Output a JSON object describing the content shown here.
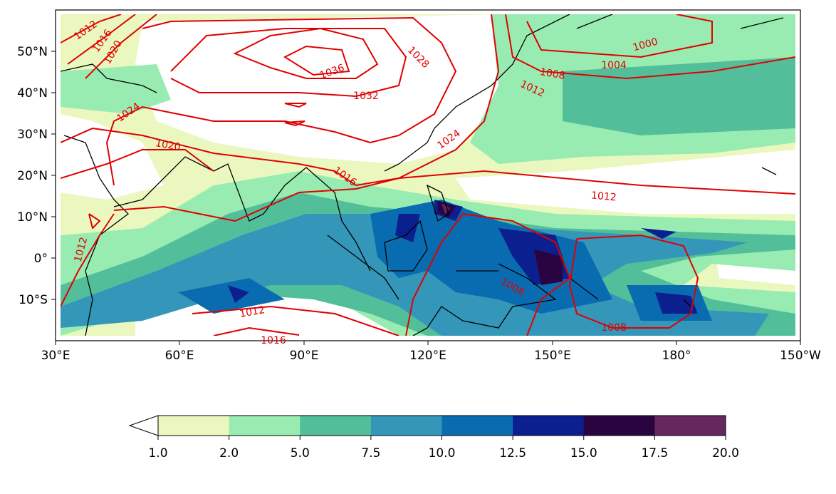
{
  "map": {
    "lon_labels": [
      "30°E",
      "60°E",
      "90°E",
      "120°E",
      "150°E",
      "180°",
      "150°W"
    ],
    "lat_labels": [
      "50°N",
      "40°N",
      "30°N",
      "20°N",
      "10°N",
      "0°",
      "10°S"
    ],
    "contour_labels": [
      "1012",
      "1016",
      "1020",
      "1036",
      "1028",
      "1032",
      "1024",
      "1020",
      "1016",
      "1024",
      "1000",
      "1004",
      "1008",
      "1012",
      "1012",
      "1012",
      "1012",
      "1016",
      "1008",
      "1008"
    ]
  },
  "colorbar": {
    "ticks": [
      "1.0",
      "2.0",
      "5.0",
      "7.5",
      "10.0",
      "12.5",
      "15.0",
      "17.5",
      "20.0"
    ]
  }
}
